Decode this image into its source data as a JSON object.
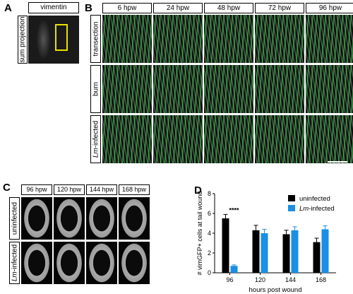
{
  "panel_letters": [
    "A",
    "B",
    "C",
    "D"
  ],
  "panel_a": {
    "header": "vimentin",
    "row_label": "sum projection"
  },
  "panel_b": {
    "time_headers": [
      "6 hpw",
      "24 hpw",
      "48 hpw",
      "72 hpw",
      "96 hpw"
    ],
    "row_labels": [
      {
        "text": "transection",
        "italic_part": "",
        "rest": "transection"
      },
      {
        "text": "burn",
        "italic_part": "",
        "rest": "burn"
      },
      {
        "text": "Lm-infected",
        "italic_part": "Lm",
        "rest": "-infected"
      }
    ]
  },
  "panel_c": {
    "time_headers": [
      "96 hpw",
      "120 hpw",
      "144 hpw",
      "168 hpw"
    ],
    "row_labels": [
      {
        "italic_part": "",
        "rest": "uninfected"
      },
      {
        "italic_part": "Lm",
        "rest": "-infected"
      }
    ]
  },
  "chart_data": {
    "type": "bar",
    "title": "",
    "xlabel": "hours post wound",
    "ylabel": "# vimGFP+ cells at tail wound",
    "categories": [
      "96",
      "120",
      "144",
      "168"
    ],
    "ylim": [
      0,
      8
    ],
    "yticks": [
      0,
      2,
      4,
      6,
      8
    ],
    "series": [
      {
        "name": "uninfected",
        "color": "#000000",
        "values": [
          5.5,
          4.3,
          3.9,
          3.1
        ],
        "errors": [
          0.4,
          0.5,
          0.4,
          0.4
        ]
      },
      {
        "name": "Lm-infected",
        "name_italic_part": "Lm",
        "name_rest": "-infected",
        "color": "#1a8fe3",
        "values": [
          0.7,
          4.0,
          4.3,
          4.4
        ],
        "errors": [
          0.1,
          0.4,
          0.35,
          0.35
        ]
      }
    ],
    "annotations": [
      {
        "text": "****",
        "category": "96"
      }
    ],
    "legend_position": "top-right",
    "grid": false
  }
}
